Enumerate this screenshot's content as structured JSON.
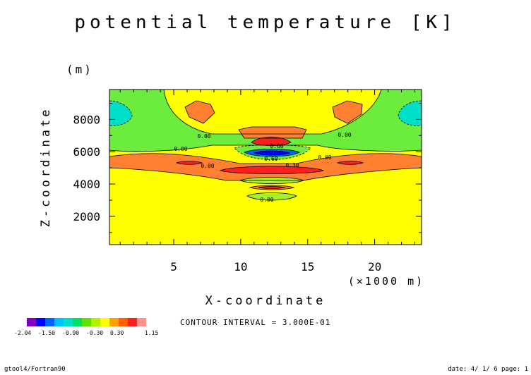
{
  "chart_data": {
    "type": "heatmap",
    "title": "potential temperature [K]",
    "xlabel": "X-coordinate",
    "x_unit": "(×1000 m)",
    "ylabel": "Z-coordinate",
    "y_unit": "(m)",
    "xlim": [
      0.2,
      23.5
    ],
    "ylim": [
      250,
      9850
    ],
    "x_ticks": [
      5,
      10,
      15,
      20
    ],
    "y_ticks": [
      2000,
      4000,
      6000,
      8000
    ],
    "contour_interval_text": "CONTOUR INTERVAL = 3.000E-01",
    "contour_labels": [
      "0.00",
      "0.00",
      "0.00",
      "0.00",
      "0.00",
      "0.60",
      "0.60",
      "0.30",
      "0.00"
    ],
    "colorbar": {
      "colors": [
        "#7f00c0",
        "#0000ff",
        "#0064ff",
        "#00c0ff",
        "#00e0c8",
        "#00e060",
        "#60e000",
        "#b4f000",
        "#ffff00",
        "#ffa000",
        "#ff6000",
        "#ff1e1e",
        "#ff9090"
      ],
      "labels": [
        "-2.04",
        "-1.50",
        "-0.90",
        "-0.30",
        "0.30",
        "1.15"
      ]
    },
    "bands": {
      "green": "#6cec3c",
      "lightgreen": "#a8f028",
      "yellow": "#ffff00",
      "orange": "#ff8030",
      "red": "#ff1e1e",
      "lightred": "#ff9090",
      "cyan": "#00e0c8",
      "blue": "#0000ff",
      "deepblue": "#0064ff"
    }
  },
  "footer": {
    "left": "gtool4/Fortran90",
    "right": "date: 4/ 1/ 6 page: 1"
  }
}
